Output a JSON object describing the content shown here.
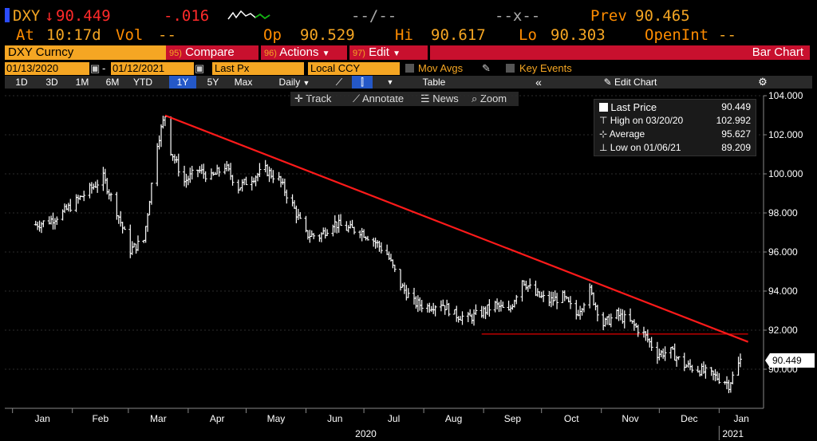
{
  "header": {
    "ticker": "DXY",
    "last": "90.449",
    "change": "-.016",
    "bid": "--/--",
    "ask": "--x--",
    "prev_label": "Prev",
    "prev": "90.465",
    "at_label": "At",
    "time": "10:17d",
    "vol_label": "Vol",
    "vol": "--",
    "op_label": "Op",
    "op": "90.529",
    "hi_label": "Hi",
    "hi": "90.617",
    "lo_label": "Lo",
    "lo": "90.303",
    "openint_label": "OpenInt",
    "openint": "--"
  },
  "toolbar": {
    "security": "DXY Curncy",
    "compare_num": "95)",
    "compare": "Compare",
    "actions_num": "96)",
    "actions": "Actions",
    "edit_num": "97)",
    "edit": "Edit",
    "chart_type": "Bar Chart",
    "start_date": "01/13/2020",
    "end_date": "01/12/2021",
    "field": "Last Px",
    "currency": "Local CCY",
    "mov_avgs": "Mov Avgs",
    "key_events": "Key Events",
    "periods": [
      "1D",
      "3D",
      "1M",
      "6M",
      "YTD",
      "1Y",
      "5Y",
      "Max"
    ],
    "active_period": "1Y",
    "frequency": "Daily",
    "table": "Table",
    "edit_chart": "Edit Chart",
    "track": "Track",
    "annotate": "Annotate",
    "news": "News",
    "zoom": "Zoom"
  },
  "legend": {
    "last_label": "Last Price",
    "last_value": "90.449",
    "high_label": "High on 03/20/20",
    "high_value": "102.992",
    "avg_label": "Average",
    "avg_value": "95.627",
    "low_label": "Low on 01/06/21",
    "low_value": "89.209"
  },
  "last_badge": "90.449",
  "colors": {
    "background": "#000000",
    "amber": "#f5a623",
    "red_bar": "#c8102e",
    "trendline": "#ff1a1a",
    "price_bars": "#ffffff"
  },
  "chart_data": {
    "type": "bar",
    "title": "",
    "ylim": [
      88,
      104
    ],
    "y_ticks": [
      "90.000",
      "92.000",
      "94.000",
      "96.000",
      "98.000",
      "100.000",
      "102.000",
      "104.000"
    ],
    "x_ticks": [
      "Jan",
      "Feb",
      "Mar",
      "Apr",
      "May",
      "Jun",
      "Jul",
      "Aug",
      "Sep",
      "Oct",
      "Nov",
      "Dec",
      "Jan"
    ],
    "x_years": [
      "2020",
      "2021"
    ],
    "series": [
      {
        "x": [
          "2020-01-13",
          "2020-01-20",
          "2020-01-27",
          "2020-02-03",
          "2020-02-10",
          "2020-02-17",
          "2020-02-24",
          "2020-03-02",
          "2020-03-09",
          "2020-03-16",
          "2020-03-20",
          "2020-03-23",
          "2020-03-30",
          "2020-04-06",
          "2020-04-13",
          "2020-04-20",
          "2020-04-27",
          "2020-05-04",
          "2020-05-11",
          "2020-05-18",
          "2020-05-25",
          "2020-06-01",
          "2020-06-08",
          "2020-06-15",
          "2020-06-22",
          "2020-06-29",
          "2020-07-06",
          "2020-07-13",
          "2020-07-20",
          "2020-07-27",
          "2020-08-03",
          "2020-08-10",
          "2020-08-17",
          "2020-08-24",
          "2020-08-31",
          "2020-09-07",
          "2020-09-14",
          "2020-09-21",
          "2020-09-28",
          "2020-10-05",
          "2020-10-12",
          "2020-10-19",
          "2020-10-26",
          "2020-11-02",
          "2020-11-09",
          "2020-11-16",
          "2020-11-23",
          "2020-11-30",
          "2020-12-07",
          "2020-12-14",
          "2020-12-21",
          "2020-12-28",
          "2021-01-04",
          "2021-01-06",
          "2021-01-12"
        ],
        "values": [
          97.4,
          97.6,
          98.0,
          98.6,
          99.2,
          99.8,
          98.1,
          96.1,
          96.6,
          101.6,
          102.99,
          101.2,
          99.6,
          100.2,
          99.8,
          100.4,
          99.3,
          99.8,
          100.2,
          99.7,
          98.4,
          96.9,
          96.8,
          97.5,
          97.2,
          97.1,
          96.6,
          95.9,
          94.3,
          93.4,
          93.2,
          93.4,
          92.8,
          92.6,
          92.9,
          93.3,
          92.9,
          94.6,
          93.8,
          93.5,
          93.7,
          92.8,
          94.0,
          92.3,
          92.8,
          92.4,
          91.8,
          90.8,
          90.9,
          90.2,
          90.0,
          89.7,
          89.4,
          89.21,
          90.449
        ]
      }
    ],
    "trendline": {
      "from": [
        "2020-03-20",
        102.99
      ],
      "to": [
        "2021-01-16",
        91.4
      ]
    },
    "support_line": {
      "from": [
        "2020-08-31",
        91.8
      ],
      "to": [
        "2021-01-16",
        91.8
      ]
    }
  }
}
